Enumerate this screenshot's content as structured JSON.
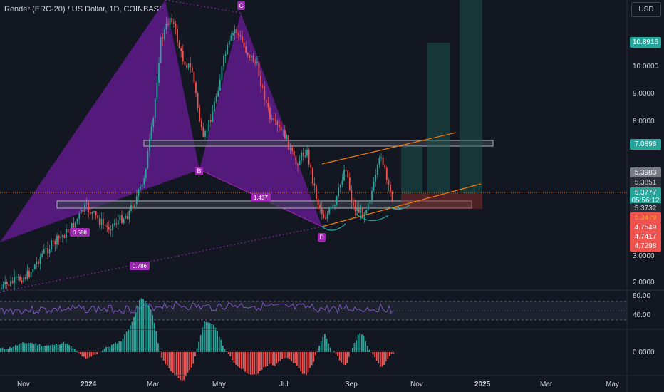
{
  "header": {
    "title": "Render (ERC-20) / US Dollar, 1D, COINBASE",
    "currency_button": "USD"
  },
  "colors": {
    "background": "#131722",
    "bull": "#26a69a",
    "bear": "#ef5350",
    "pattern_fill": "#6a1b9a",
    "orange_line": "#f57c00",
    "rsi_line": "#7e57c2"
  },
  "price_axis": {
    "ticks": [
      "10.0000",
      "9.0000",
      "8.0000",
      "3.0000",
      "2.0000"
    ],
    "badges": [
      {
        "text": "10.8916",
        "kind": "green"
      },
      {
        "text": "7.0898",
        "kind": "green"
      },
      {
        "text": "5.3983",
        "kind": "gray"
      },
      {
        "text": "5.3851",
        "kind": "dark"
      },
      {
        "text": "5.3777",
        "kind": "green"
      },
      {
        "text": "05:56:12",
        "kind": "green"
      },
      {
        "text": "5.3732",
        "kind": "dark"
      },
      {
        "text": "5.3479",
        "kind": "red"
      },
      {
        "text": "4.7549",
        "kind": "red"
      },
      {
        "text": "4.7417",
        "kind": "red"
      },
      {
        "text": "4.7298",
        "kind": "red"
      }
    ]
  },
  "pattern_labels": {
    "c": "C",
    "b": "B",
    "d": "D",
    "ratio_1": "1.437",
    "ratio_2": "0.588",
    "ratio_3": "0.786"
  },
  "rsi_axis": {
    "upper": "80.00",
    "lower": "40.00"
  },
  "macd_axis": {
    "zero": "0.0000"
  },
  "time_axis": [
    "Nov",
    "2024",
    "Mar",
    "May",
    "Jul",
    "Sep",
    "Nov",
    "2025",
    "Mar",
    "May"
  ]
}
